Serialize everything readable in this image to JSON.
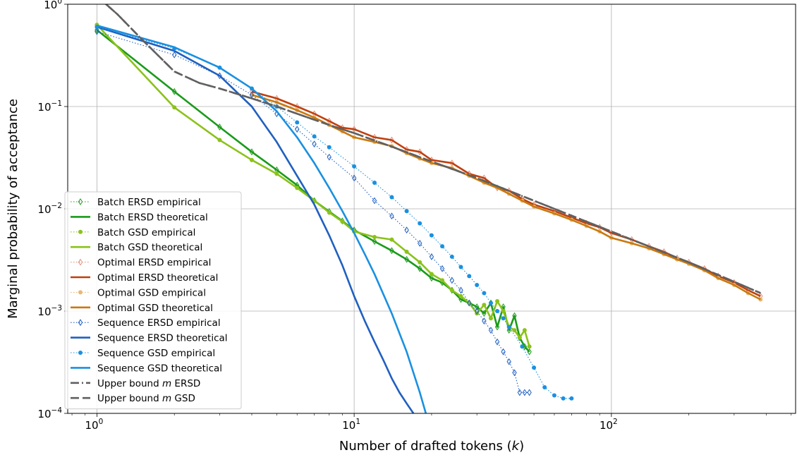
{
  "chart_data": {
    "type": "line",
    "title": "",
    "xlabel": "Number of drafted tokens (k)",
    "xlabel_parts": [
      "Number of drafted tokens (",
      "k",
      ")"
    ],
    "ylabel": "Marginal probability of acceptance",
    "xscale": "log",
    "yscale": "log",
    "xlim": [
      0.77,
      520
    ],
    "ylim": [
      0.0001,
      1
    ],
    "grid": true,
    "legend_position": "lower-left",
    "x_ticks": [
      {
        "value": 1,
        "base": "10",
        "exp": "0"
      },
      {
        "value": 10,
        "base": "10",
        "exp": "1"
      },
      {
        "value": 100,
        "base": "10",
        "exp": "2"
      }
    ],
    "y_ticks": [
      {
        "value": 0.0001,
        "base": "10",
        "exp": "−4"
      },
      {
        "value": 0.001,
        "base": "10",
        "exp": "−3"
      },
      {
        "value": 0.01,
        "base": "10",
        "exp": "−2"
      },
      {
        "value": 0.1,
        "base": "10",
        "exp": "−1"
      },
      {
        "value": 1,
        "base": "10",
        "exp": "0"
      }
    ],
    "series": [
      {
        "name": "Batch ERSD empirical",
        "label_parts": [
          "Batch ERSD empirical"
        ],
        "color": "#1a9b1a",
        "style": "dotted",
        "marker": "diamond",
        "x": [
          1,
          2,
          3,
          4,
          5,
          6,
          7,
          8,
          9,
          10,
          12,
          14,
          16,
          18,
          20,
          22,
          24,
          26,
          28,
          30,
          32,
          34,
          36,
          38,
          40,
          42,
          44,
          46,
          48
        ],
        "y": [
          0.56,
          0.14,
          0.063,
          0.036,
          0.024,
          0.017,
          0.012,
          0.0094,
          0.0076,
          0.0062,
          0.0048,
          0.0039,
          0.0032,
          0.0026,
          0.0021,
          0.0019,
          0.0016,
          0.0013,
          0.0012,
          0.0011,
          0.00095,
          0.0012,
          0.0007,
          0.0011,
          0.00065,
          0.0009,
          0.00055,
          0.00045,
          0.0004
        ]
      },
      {
        "name": "Batch ERSD theoretical",
        "label_parts": [
          "Batch ERSD theoretical"
        ],
        "color": "#1a9b1a",
        "style": "solid",
        "marker": "none",
        "x": [
          1,
          2,
          3,
          4,
          5,
          6,
          7,
          8,
          9,
          10,
          12,
          14,
          16,
          18,
          20,
          22,
          24,
          26,
          28,
          30,
          32,
          34,
          36,
          38,
          40,
          42,
          44,
          46,
          48
        ],
        "y": [
          0.56,
          0.14,
          0.063,
          0.036,
          0.024,
          0.017,
          0.012,
          0.0094,
          0.0076,
          0.0062,
          0.0048,
          0.0039,
          0.0032,
          0.0026,
          0.0021,
          0.0019,
          0.0016,
          0.0013,
          0.0012,
          0.0011,
          0.00095,
          0.0012,
          0.0007,
          0.0011,
          0.00065,
          0.0009,
          0.00055,
          0.00045,
          0.0004
        ]
      },
      {
        "name": "Batch GSD empirical",
        "label_parts": [
          "Batch GSD empirical"
        ],
        "color": "#8bc21a",
        "style": "dotted",
        "marker": "circle",
        "x": [
          1,
          2,
          3,
          4,
          5,
          6,
          7,
          8,
          9,
          10,
          12,
          14,
          16,
          18,
          20,
          22,
          24,
          26,
          28,
          30,
          32,
          34,
          36,
          38,
          40,
          42,
          44,
          46,
          48
        ],
        "y": [
          0.63,
          0.098,
          0.047,
          0.03,
          0.022,
          0.016,
          0.012,
          0.0092,
          0.0075,
          0.006,
          0.0053,
          0.005,
          0.0038,
          0.003,
          0.0023,
          0.002,
          0.0016,
          0.0014,
          0.0012,
          0.00095,
          0.00115,
          0.00085,
          0.00125,
          0.001,
          0.0007,
          0.00065,
          0.00055,
          0.00065,
          0.00045
        ]
      },
      {
        "name": "Batch GSD theoretical",
        "label_parts": [
          "Batch GSD theoretical"
        ],
        "color": "#8bc21a",
        "style": "solid",
        "marker": "none",
        "x": [
          1,
          2,
          3,
          4,
          5,
          6,
          7,
          8,
          9,
          10,
          12,
          14,
          16,
          18,
          20,
          22,
          24,
          26,
          28,
          30,
          32,
          34,
          36,
          38,
          40,
          42,
          44,
          46,
          48
        ],
        "y": [
          0.63,
          0.098,
          0.047,
          0.03,
          0.022,
          0.016,
          0.012,
          0.0092,
          0.0075,
          0.006,
          0.0053,
          0.005,
          0.0038,
          0.003,
          0.0023,
          0.002,
          0.0016,
          0.0014,
          0.0012,
          0.00095,
          0.00115,
          0.00085,
          0.00125,
          0.001,
          0.0007,
          0.00065,
          0.00055,
          0.00065,
          0.00045
        ]
      },
      {
        "name": "Optimal ERSD empirical",
        "label_parts": [
          "Optimal ERSD empirical"
        ],
        "color": "#e0917a",
        "style": "dotted",
        "marker": "diamond",
        "x": [
          4,
          5,
          6,
          7,
          8,
          9,
          10,
          12,
          14,
          16,
          18,
          20,
          24,
          28,
          32,
          36,
          40,
          45,
          50,
          60,
          70,
          80,
          90,
          100,
          120,
          140,
          160,
          180,
          200,
          230,
          260,
          300,
          340,
          380
        ],
        "y": [
          0.14,
          0.12,
          0.1,
          0.085,
          0.072,
          0.062,
          0.06,
          0.05,
          0.047,
          0.038,
          0.036,
          0.03,
          0.028,
          0.022,
          0.02,
          0.016,
          0.015,
          0.0125,
          0.011,
          0.0095,
          0.0082,
          0.0072,
          0.0066,
          0.0058,
          0.005,
          0.0043,
          0.0038,
          0.0033,
          0.003,
          0.0026,
          0.0022,
          0.0019,
          0.0016,
          0.0014
        ]
      },
      {
        "name": "Optimal ERSD theoretical",
        "label_parts": [
          "Optimal ERSD theoretical"
        ],
        "color": "#c0400e",
        "style": "solid",
        "marker": "none",
        "x": [
          4,
          5,
          6,
          7,
          8,
          9,
          10,
          12,
          14,
          16,
          18,
          20,
          24,
          28,
          32,
          36,
          40,
          45,
          50,
          60,
          70,
          80,
          90,
          100,
          120,
          140,
          160,
          180,
          200,
          230,
          260,
          300,
          340,
          380
        ],
        "y": [
          0.14,
          0.12,
          0.1,
          0.085,
          0.072,
          0.062,
          0.06,
          0.05,
          0.047,
          0.038,
          0.036,
          0.03,
          0.028,
          0.022,
          0.02,
          0.016,
          0.015,
          0.0125,
          0.011,
          0.0095,
          0.0082,
          0.0072,
          0.0066,
          0.0058,
          0.005,
          0.0043,
          0.0038,
          0.0033,
          0.003,
          0.0026,
          0.0022,
          0.0019,
          0.0016,
          0.0014
        ]
      },
      {
        "name": "Optimal GSD empirical",
        "label_parts": [
          "Optimal GSD empirical"
        ],
        "color": "#e8b878",
        "style": "dotted",
        "marker": "circle",
        "x": [
          4,
          5,
          6,
          7,
          8,
          9,
          10,
          12,
          14,
          16,
          18,
          20,
          24,
          28,
          32,
          36,
          40,
          45,
          50,
          60,
          70,
          80,
          90,
          100,
          120,
          140,
          160,
          180,
          200,
          230,
          260,
          300,
          340,
          380
        ],
        "y": [
          0.13,
          0.11,
          0.092,
          0.078,
          0.066,
          0.057,
          0.05,
          0.045,
          0.041,
          0.035,
          0.031,
          0.028,
          0.025,
          0.021,
          0.018,
          0.016,
          0.014,
          0.012,
          0.0105,
          0.009,
          0.0078,
          0.0068,
          0.006,
          0.0052,
          0.0046,
          0.0041,
          0.0036,
          0.0032,
          0.0029,
          0.0025,
          0.0021,
          0.0018,
          0.0015,
          0.0013
        ]
      },
      {
        "name": "Optimal GSD theoretical",
        "label_parts": [
          "Optimal GSD theoretical"
        ],
        "color": "#c87a10",
        "style": "solid",
        "marker": "none",
        "x": [
          4,
          5,
          6,
          7,
          8,
          9,
          10,
          12,
          14,
          16,
          18,
          20,
          24,
          28,
          32,
          36,
          40,
          45,
          50,
          60,
          70,
          80,
          90,
          100,
          120,
          140,
          160,
          180,
          200,
          230,
          260,
          300,
          340,
          380
        ],
        "y": [
          0.13,
          0.11,
          0.092,
          0.078,
          0.066,
          0.057,
          0.05,
          0.045,
          0.041,
          0.035,
          0.031,
          0.028,
          0.025,
          0.021,
          0.018,
          0.016,
          0.014,
          0.012,
          0.0105,
          0.009,
          0.0078,
          0.0068,
          0.006,
          0.0052,
          0.0046,
          0.0041,
          0.0036,
          0.0032,
          0.0029,
          0.0025,
          0.0021,
          0.0018,
          0.0015,
          0.0013
        ]
      },
      {
        "name": "Sequence ERSD empirical",
        "label_parts": [
          "Sequence ERSD empirical"
        ],
        "color": "#2060c0",
        "style": "dotted",
        "marker": "diamond",
        "x": [
          1,
          2,
          3,
          4,
          5,
          6,
          7,
          8,
          10,
          12,
          14,
          16,
          18,
          20,
          22,
          24,
          26,
          28,
          30,
          32,
          34,
          36,
          38,
          40,
          42,
          44,
          46,
          48
        ],
        "y": [
          0.54,
          0.32,
          0.2,
          0.13,
          0.085,
          0.06,
          0.043,
          0.032,
          0.02,
          0.012,
          0.0085,
          0.0062,
          0.0046,
          0.0034,
          0.0026,
          0.002,
          0.0016,
          0.0012,
          0.001,
          0.0008,
          0.00065,
          0.0005,
          0.0004,
          0.00032,
          0.00025,
          0.00016,
          0.00016,
          0.00016
        ]
      },
      {
        "name": "Sequence ERSD theoretical",
        "label_parts": [
          "Sequence ERSD theoretical"
        ],
        "color": "#2060c0",
        "style": "solid",
        "marker": "none",
        "x": [
          1,
          2,
          3,
          4,
          5,
          6,
          7,
          8,
          9,
          10,
          11,
          12,
          13,
          14,
          15,
          16,
          17
        ],
        "y": [
          0.6,
          0.35,
          0.2,
          0.1,
          0.045,
          0.021,
          0.011,
          0.0055,
          0.0028,
          0.0014,
          0.0008,
          0.0005,
          0.00033,
          0.00022,
          0.00016,
          0.000125,
          0.0001
        ]
      },
      {
        "name": "Sequence GSD empirical",
        "label_parts": [
          "Sequence GSD empirical"
        ],
        "color": "#1a90e0",
        "style": "dotted",
        "marker": "circle",
        "x": [
          1,
          2,
          3,
          4,
          5,
          6,
          7,
          8,
          10,
          12,
          14,
          16,
          18,
          20,
          22,
          24,
          26,
          28,
          30,
          32,
          34,
          36,
          38,
          40,
          45,
          50,
          55,
          60,
          65,
          70
        ],
        "y": [
          0.6,
          0.37,
          0.24,
          0.15,
          0.1,
          0.07,
          0.051,
          0.04,
          0.026,
          0.018,
          0.013,
          0.0095,
          0.0072,
          0.0055,
          0.0043,
          0.0034,
          0.0027,
          0.0022,
          0.0018,
          0.0015,
          0.0012,
          0.001,
          0.00085,
          0.0007,
          0.00045,
          0.00028,
          0.00018,
          0.00015,
          0.00014,
          0.00014
        ]
      },
      {
        "name": "Sequence GSD theoretical",
        "label_parts": [
          "Sequence GSD theoretical"
        ],
        "color": "#1a90e0",
        "style": "solid",
        "marker": "none",
        "x": [
          1,
          2,
          3,
          4,
          5,
          6,
          7,
          8,
          9,
          10,
          11,
          12,
          14,
          16,
          18,
          19
        ],
        "y": [
          0.62,
          0.38,
          0.24,
          0.15,
          0.09,
          0.05,
          0.028,
          0.016,
          0.0095,
          0.0058,
          0.0036,
          0.0023,
          0.00095,
          0.0004,
          0.00016,
          0.0001
        ]
      },
      {
        "name": "Upper bound m ERSD",
        "label_parts": [
          "Upper bound ",
          "m",
          " ERSD"
        ],
        "color": "#606060",
        "style": "dashdot",
        "marker": "none",
        "x": [
          1,
          1.2,
          1.5,
          2,
          2.5,
          3,
          4,
          5,
          6,
          8,
          10,
          15,
          20,
          30,
          50,
          100,
          200,
          380
        ],
        "y": [
          1.2,
          0.8,
          0.45,
          0.22,
          0.17,
          0.15,
          0.12,
          0.1,
          0.085,
          0.066,
          0.055,
          0.038,
          0.029,
          0.02,
          0.012,
          0.006,
          0.003,
          0.0015
        ]
      },
      {
        "name": "Upper bound m GSD",
        "label_parts": [
          "Upper bound ",
          "m",
          " GSD"
        ],
        "color": "#606060",
        "style": "dashed",
        "marker": "none",
        "x": [
          1,
          1.2,
          1.5,
          2,
          2.5,
          3,
          4,
          5,
          6,
          8,
          10,
          15,
          20,
          30,
          50,
          100,
          200,
          380
        ],
        "y": [
          1.2,
          0.8,
          0.45,
          0.22,
          0.17,
          0.15,
          0.12,
          0.1,
          0.085,
          0.066,
          0.055,
          0.038,
          0.029,
          0.02,
          0.012,
          0.006,
          0.003,
          0.0015
        ]
      }
    ]
  }
}
